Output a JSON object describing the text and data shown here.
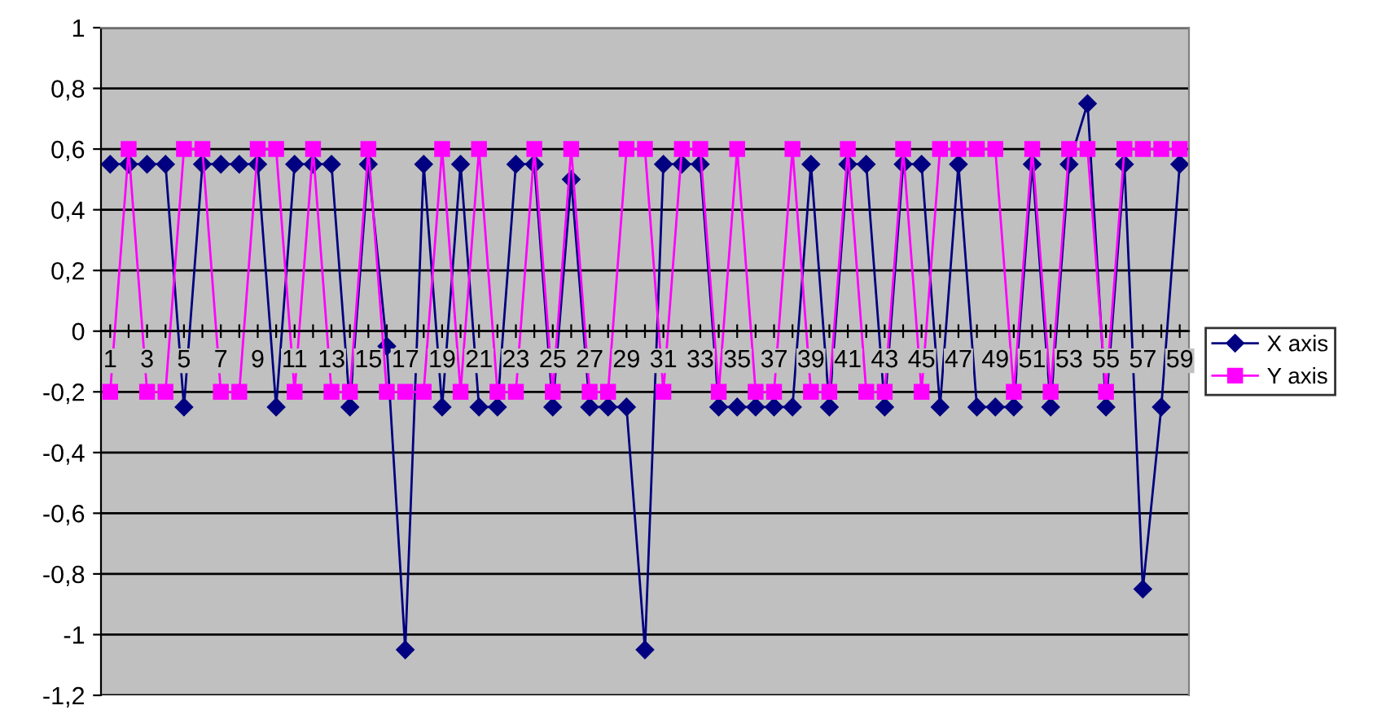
{
  "chart_data": {
    "type": "line",
    "categories": [
      "1",
      null,
      "3",
      null,
      "5",
      null,
      "7",
      null,
      "9",
      null,
      "11",
      null,
      "13",
      null,
      "15",
      null,
      "17",
      null,
      "19",
      null,
      "21",
      null,
      "23",
      null,
      "25",
      null,
      "27",
      null,
      "29",
      null,
      "31",
      null,
      "33",
      null,
      "35",
      null,
      "37",
      null,
      "39",
      null,
      "41",
      null,
      "43",
      null,
      "45",
      null,
      "47",
      null,
      "49",
      null,
      "51",
      null,
      "53",
      null,
      "55",
      null,
      "57",
      null,
      "59"
    ],
    "series": [
      {
        "name": "X axis",
        "color": "#000080",
        "marker": "diamond",
        "values": [
          0.55,
          0.55,
          0.55,
          0.55,
          -0.25,
          0.55,
          0.55,
          0.55,
          0.55,
          -0.25,
          0.55,
          0.55,
          0.55,
          -0.25,
          0.55,
          -0.05,
          -1.05,
          0.55,
          -0.25,
          0.55,
          -0.25,
          -0.25,
          0.55,
          0.55,
          -0.25,
          0.5,
          -0.25,
          -0.25,
          -0.25,
          -1.05,
          0.55,
          0.55,
          0.55,
          -0.25,
          -0.25,
          -0.25,
          -0.25,
          -0.25,
          0.55,
          -0.25,
          0.55,
          0.55,
          -0.25,
          0.55,
          0.55,
          -0.25,
          0.55,
          -0.25,
          -0.25,
          -0.25,
          0.55,
          -0.25,
          0.55,
          0.75,
          -0.25,
          0.55,
          -0.85,
          -0.25,
          0.55
        ]
      },
      {
        "name": "Y axis",
        "color": "#ff00ff",
        "marker": "square",
        "values": [
          -0.2,
          0.6,
          -0.2,
          -0.2,
          0.6,
          0.6,
          -0.2,
          -0.2,
          0.6,
          0.6,
          -0.2,
          0.6,
          -0.2,
          -0.2,
          0.6,
          -0.2,
          -0.2,
          -0.2,
          0.6,
          -0.2,
          0.6,
          -0.2,
          -0.2,
          0.6,
          -0.2,
          0.6,
          -0.2,
          -0.2,
          0.6,
          0.6,
          -0.2,
          0.6,
          0.6,
          -0.2,
          0.6,
          -0.2,
          -0.2,
          0.6,
          -0.2,
          -0.2,
          0.6,
          -0.2,
          -0.2,
          0.6,
          -0.2,
          0.6,
          0.6,
          0.6,
          0.6,
          -0.2,
          0.6,
          -0.2,
          0.6,
          0.6,
          -0.2,
          0.6,
          0.6,
          0.6,
          0.6
        ]
      }
    ],
    "ylim": [
      -1.2,
      1
    ],
    "yticks": [
      1,
      {
        "value": 0.8,
        "label": "0,8"
      },
      {
        "value": 0.6,
        "label": "0,6"
      },
      {
        "value": 0.4,
        "label": "0,4"
      },
      {
        "value": 0.2,
        "label": "0,2"
      },
      0,
      {
        "value": -0.2,
        "label": "-0,2"
      },
      {
        "value": -0.4,
        "label": "-0,4"
      },
      {
        "value": -0.6,
        "label": "-0,6"
      },
      {
        "value": -0.8,
        "label": "-0,8"
      },
      -1,
      {
        "value": -1.2,
        "label": "-1,2"
      }
    ],
    "grid": "y",
    "legend": "right",
    "line_style": "solid"
  }
}
